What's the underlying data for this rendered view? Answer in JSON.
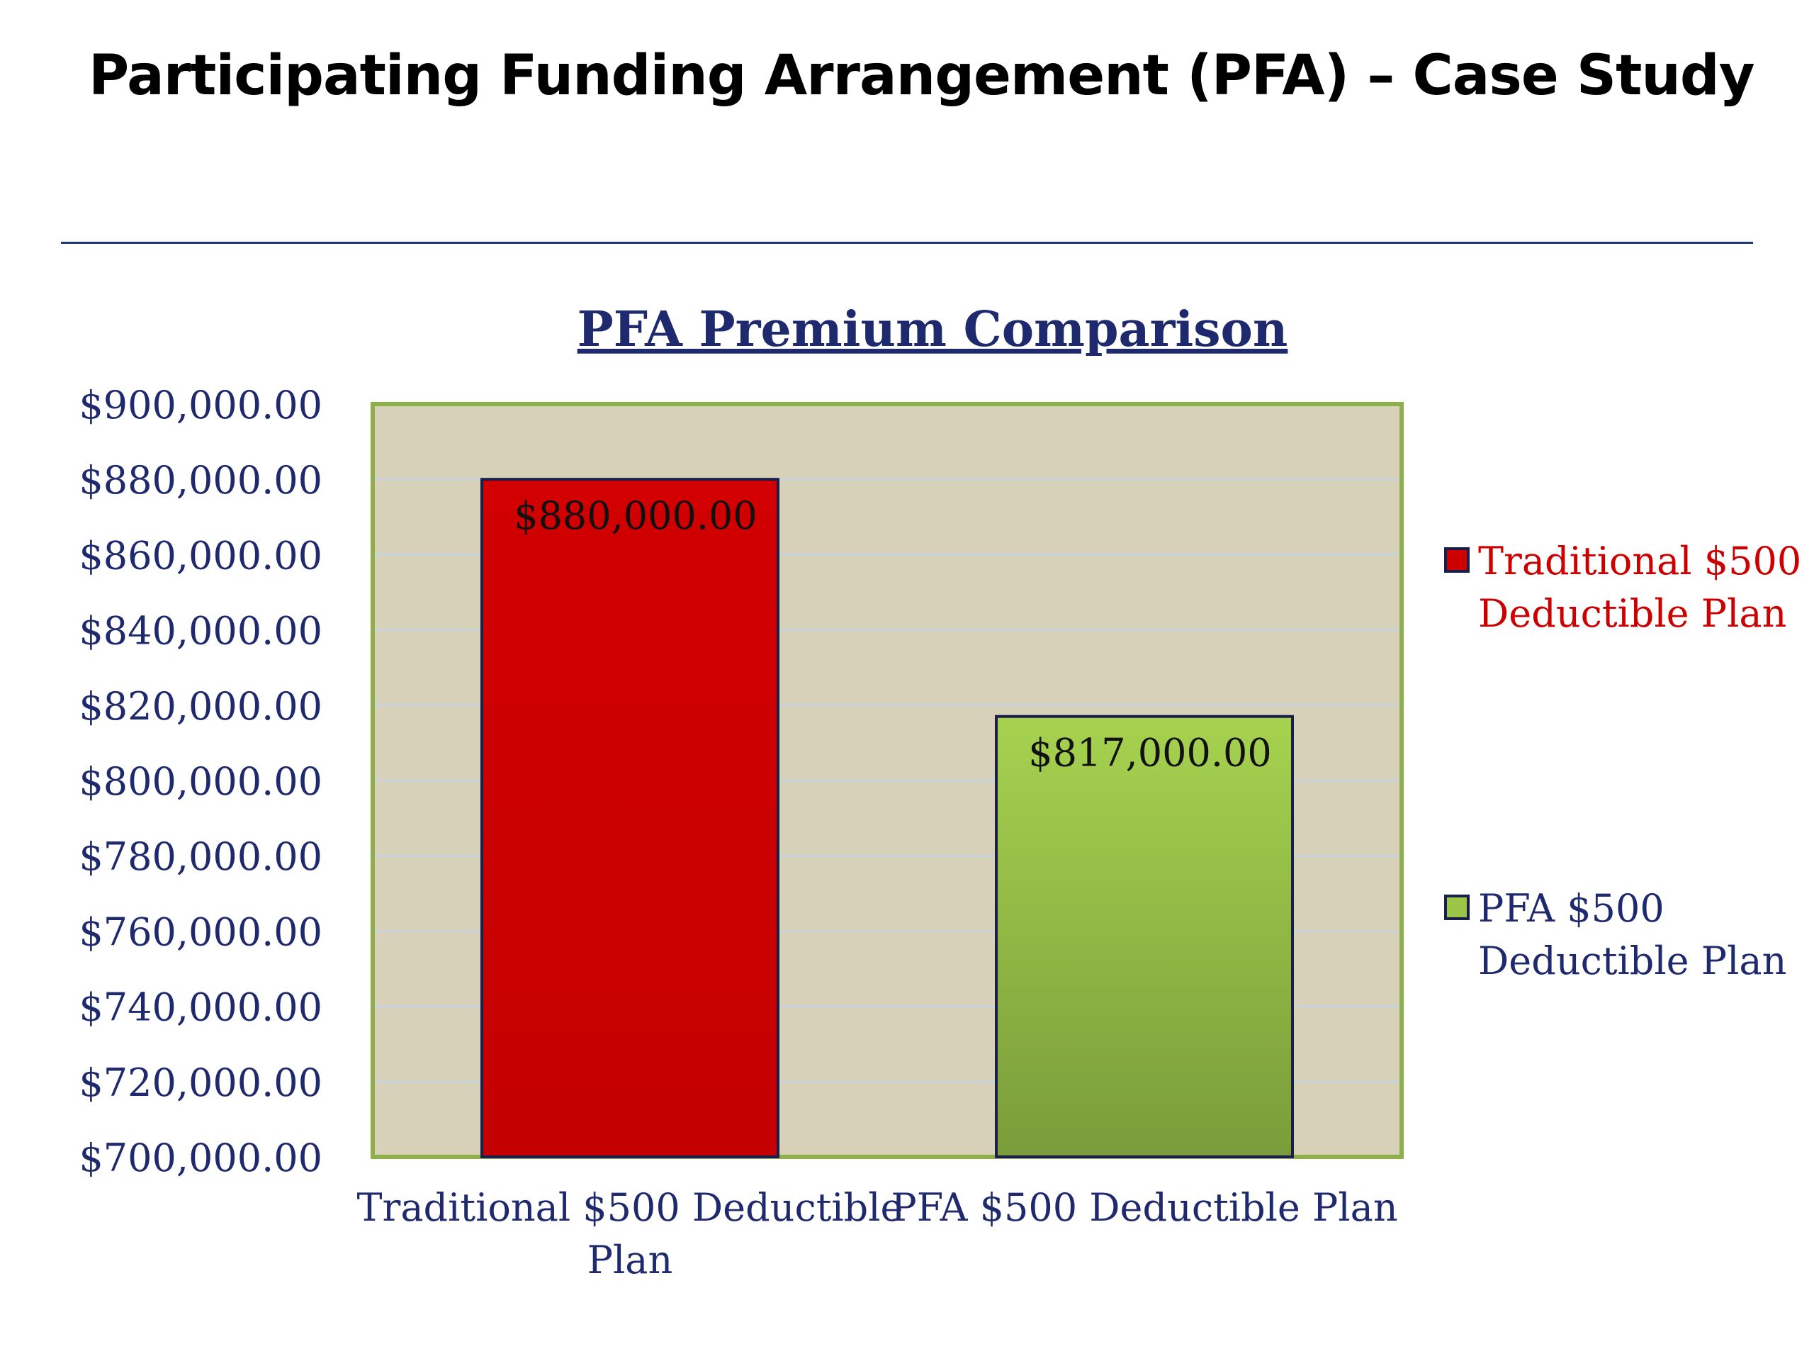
{
  "slide": {
    "title": "Participating Funding Arrangement (PFA) – Case Study"
  },
  "colors": {
    "title_rule": "#1f3a78",
    "plot_background": "#d6d1b8",
    "plot_border": "#8db04a",
    "gridline": "#c9d3dd",
    "axis_text": "#1f2a6e",
    "traditional_series": "#cc0000",
    "pfa_series": "#9ac548",
    "bar_outline": "#1a1f4a"
  },
  "chart_data": {
    "type": "bar",
    "title": "PFA Premium Comparison",
    "xlabel": "",
    "ylabel": "",
    "ylim": [
      700000,
      900000
    ],
    "ytick_step": 20000,
    "yticks": [
      "$700,000.00",
      "$720,000.00",
      "$740,000.00",
      "$760,000.00",
      "$780,000.00",
      "$800,000.00",
      "$820,000.00",
      "$840,000.00",
      "$860,000.00",
      "$880,000.00",
      "$900,000.00"
    ],
    "grid": true,
    "legend_position": "right",
    "categories": [
      [
        "Traditional $500 Deductible",
        "Plan"
      ],
      [
        "PFA $500 Deductible Plan"
      ]
    ],
    "series": [
      {
        "name": "Traditional $500 Deductible Plan",
        "legend_lines": [
          "Traditional $500",
          "Deductible Plan"
        ],
        "legend_text_color": "#cc0000",
        "color": "#cc0000",
        "category_index": 0,
        "value": 880000,
        "data_label": "$880,000.00"
      },
      {
        "name": "PFA $500 Deductible Plan",
        "legend_lines": [
          "PFA $500",
          "Deductible Plan"
        ],
        "legend_text_color": "#1f2a6e",
        "color": "#9ac548",
        "category_index": 1,
        "value": 817000,
        "data_label": "$817,000.00"
      }
    ]
  }
}
